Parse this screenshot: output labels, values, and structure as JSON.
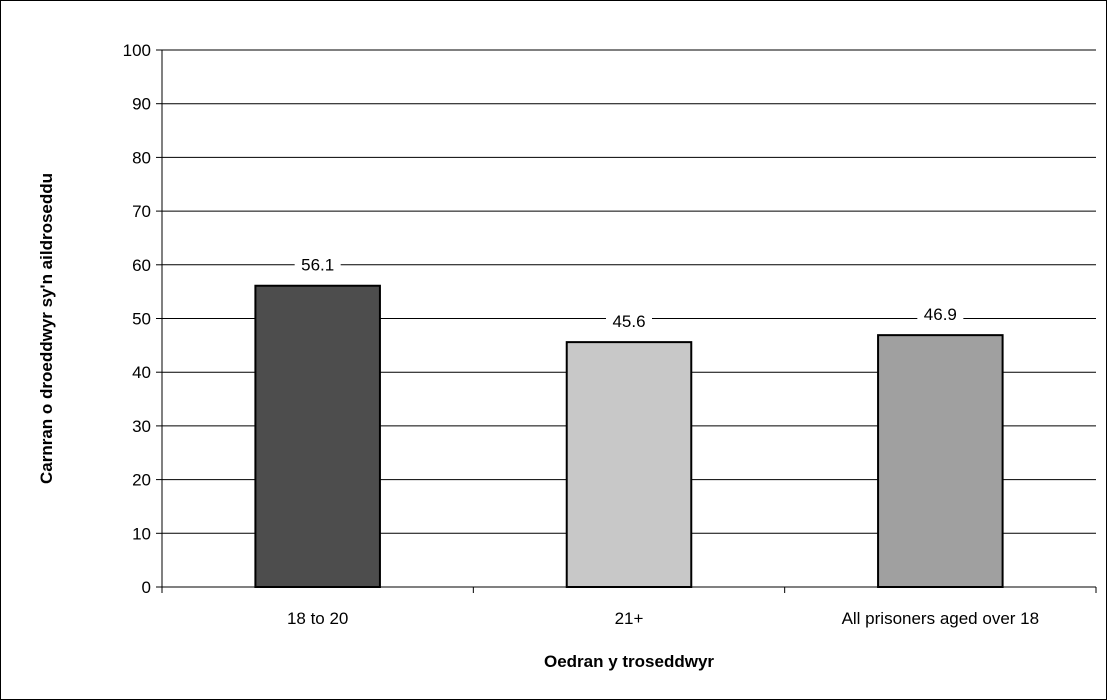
{
  "chart_data": {
    "type": "bar",
    "categories": [
      "18 to 20",
      "21+",
      "All prisoners aged over 18"
    ],
    "values": [
      56.1,
      45.6,
      46.9
    ],
    "data_labels": [
      "56.1",
      "45.6",
      "46.9"
    ],
    "bar_colors": [
      "#4d4d4d",
      "#c8c8c8",
      "#a0a0a0"
    ],
    "title": "",
    "xlabel": "Oedran y troseddwyr",
    "ylabel": "Carnran o droeddwyr sy'n aildroseddu",
    "ylim": [
      0,
      100
    ],
    "yticks": [
      0,
      10,
      20,
      30,
      40,
      50,
      60,
      70,
      80,
      90,
      100
    ],
    "grid": true,
    "legend": "none"
  }
}
